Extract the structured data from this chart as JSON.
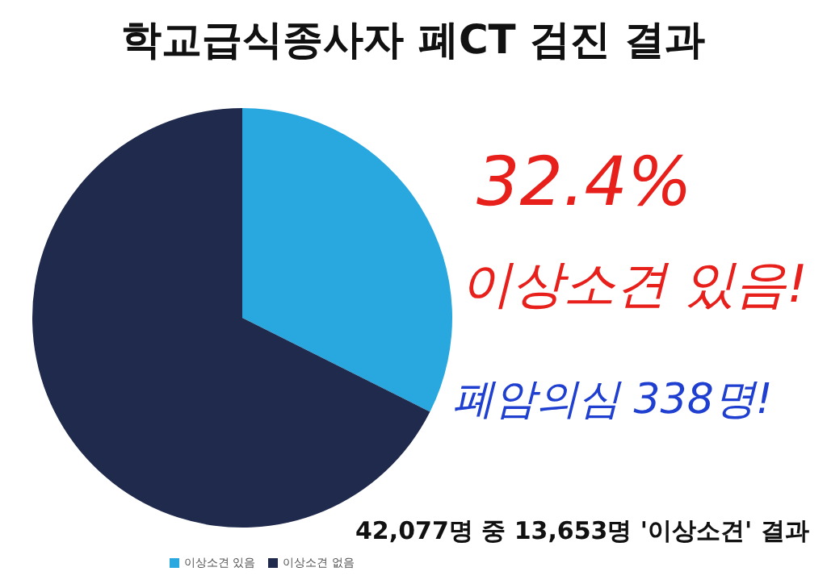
{
  "chart_data": {
    "type": "pie",
    "title": "학교급식종사자 폐CT 검진 결과",
    "categories": [
      "이상소견 있음",
      "이상소견 없음"
    ],
    "values": [
      32.4,
      67.6
    ],
    "colors": [
      "#29a8e0",
      "#1f2a4d"
    ],
    "legend": "bottom",
    "annotations": [
      "32.4%",
      "이상소견 있음!",
      "폐암의심 338명!",
      "42,077명 중 13,653명 '이상소견' 결과"
    ]
  }
}
